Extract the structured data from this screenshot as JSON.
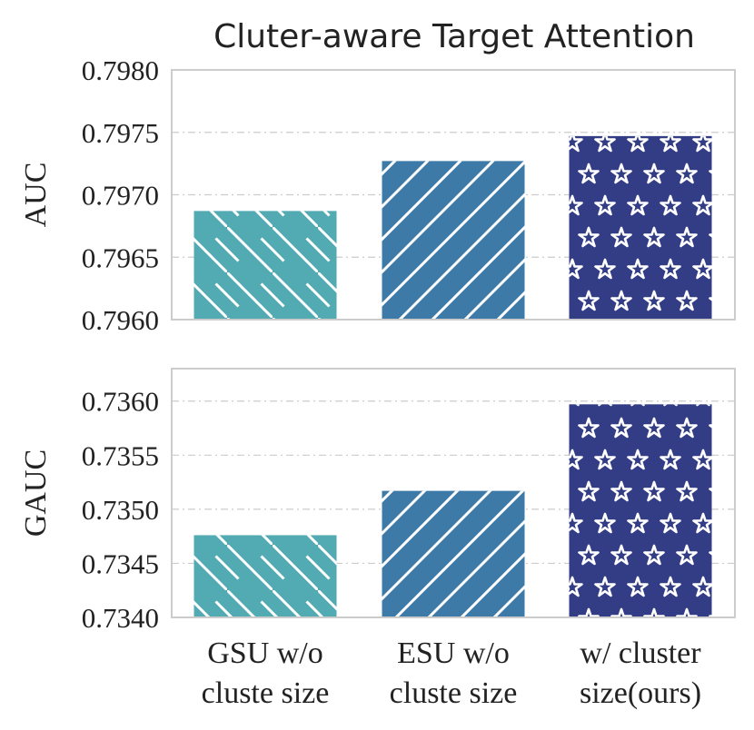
{
  "chart_data": {
    "type": "bar",
    "title": "Cluter-aware Target Attention",
    "categories": [
      [
        "GSU w/o",
        "cluste size"
      ],
      [
        "ESU w/o",
        "cluste size"
      ],
      [
        "w/ cluster",
        "size(ours)"
      ]
    ],
    "colors": [
      "#52aab3",
      "#3d7aa8",
      "#323d85"
    ],
    "patterns": [
      "backslash-hatch",
      "slash-hatch",
      "star"
    ],
    "grid": true,
    "panels": [
      {
        "ylabel": "AUC",
        "ylim": [
          0.796,
          0.798
        ],
        "yticks": [
          "0.7980",
          "0.7975",
          "0.7970",
          "0.7965",
          "0.7960"
        ],
        "values": [
          0.79687,
          0.79727,
          0.79747
        ]
      },
      {
        "ylabel": "GAUC",
        "ylim": [
          0.734,
          0.7363
        ],
        "yticks": [
          "0.7360",
          "0.7355",
          "0.7350",
          "0.7345",
          "0.7340"
        ],
        "values": [
          0.73476,
          0.73517,
          0.73597
        ]
      }
    ]
  }
}
